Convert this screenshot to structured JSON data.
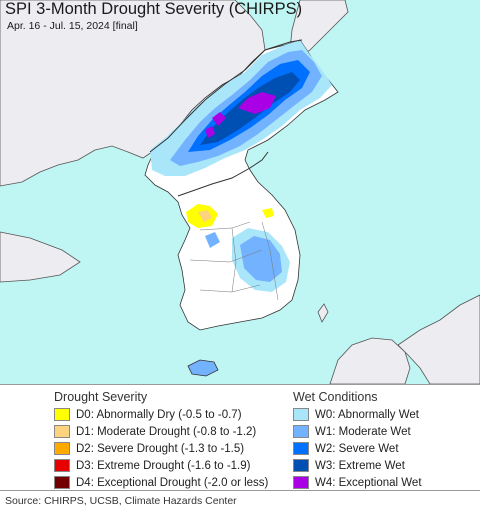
{
  "map": {
    "title": "SPI 3-Month Drought Severity (CHIRPS)",
    "subtitle": "Apr. 16 - Jul. 15, 2024 [final]",
    "colors": {
      "sea": "#bff5f2",
      "land_neighbor": "#ececf1",
      "land_normal": "#ffffff",
      "border": "#333333"
    }
  },
  "legend": {
    "drought": {
      "heading": "Drought Severity",
      "items": [
        {
          "label": "D0: Abnormally Dry (-0.5 to -0.7)",
          "color": "#ffff00"
        },
        {
          "label": "D1: Moderate Drought (-0.8 to -1.2)",
          "color": "#fcd37f"
        },
        {
          "label": "D2: Severe Drought (-1.3 to -1.5)",
          "color": "#ffaa00"
        },
        {
          "label": "D3: Extreme Drought (-1.6 to -1.9)",
          "color": "#e60000"
        },
        {
          "label": "D4: Exceptional Drought (-2.0 or less)",
          "color": "#730000"
        }
      ]
    },
    "wet": {
      "heading": "Wet Conditions",
      "items": [
        {
          "label": "W0: Abnormally Wet",
          "color": "#aae6fa"
        },
        {
          "label": "W1: Moderate Wet",
          "color": "#73b2ff"
        },
        {
          "label": "W2: Severe Wet",
          "color": "#0070ff"
        },
        {
          "label": "W3: Extreme Wet",
          "color": "#0050b4"
        },
        {
          "label": "W4: Exceptional Wet",
          "color": "#aa00e6"
        }
      ]
    }
  },
  "footer": {
    "source": "Source: CHIRPS, UCSB, Climate Hazards Center"
  }
}
